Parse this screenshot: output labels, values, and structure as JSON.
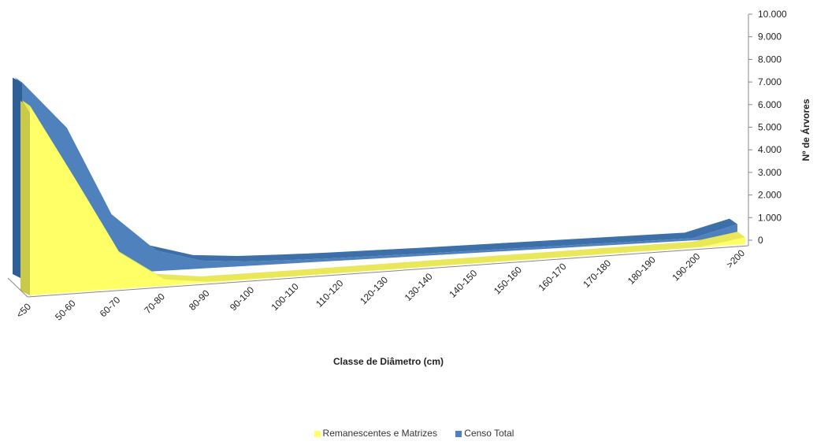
{
  "chart_data": {
    "type": "area",
    "xlabel": "Classe de Diâmetro (cm)",
    "ylabel": "Nº de Árvores",
    "ylim": [
      0,
      10000
    ],
    "yticks": [
      "10.000",
      "9.000",
      "8.000",
      "7.000",
      "6.000",
      "5.000",
      "4.000",
      "3.000",
      "2.000",
      "1.000",
      "0"
    ],
    "categories": [
      "<50",
      "50-60",
      "60-70",
      "70-80",
      "80-90",
      "90-100",
      "100-110",
      "110-120",
      "120-130",
      "130-140",
      "140-150",
      "150-160",
      "160-170",
      "170-180",
      "180-190",
      "190-200",
      ">200"
    ],
    "series": [
      {
        "name": "Remanescentes e Matrizes",
        "color": "#FFFF66",
        "values": [
          8300,
          5000,
          1600,
          280,
          30,
          20,
          10,
          10,
          10,
          10,
          10,
          10,
          10,
          10,
          10,
          10,
          300
        ]
      },
      {
        "name": "Censo Total",
        "color": "#4F81BD",
        "values": [
          8600,
          6500,
          2600,
          900,
          350,
          200,
          150,
          120,
          110,
          100,
          100,
          100,
          100,
          100,
          100,
          100,
          600
        ]
      }
    ],
    "grid": false,
    "legend": "bottom",
    "style": "3d-area"
  }
}
